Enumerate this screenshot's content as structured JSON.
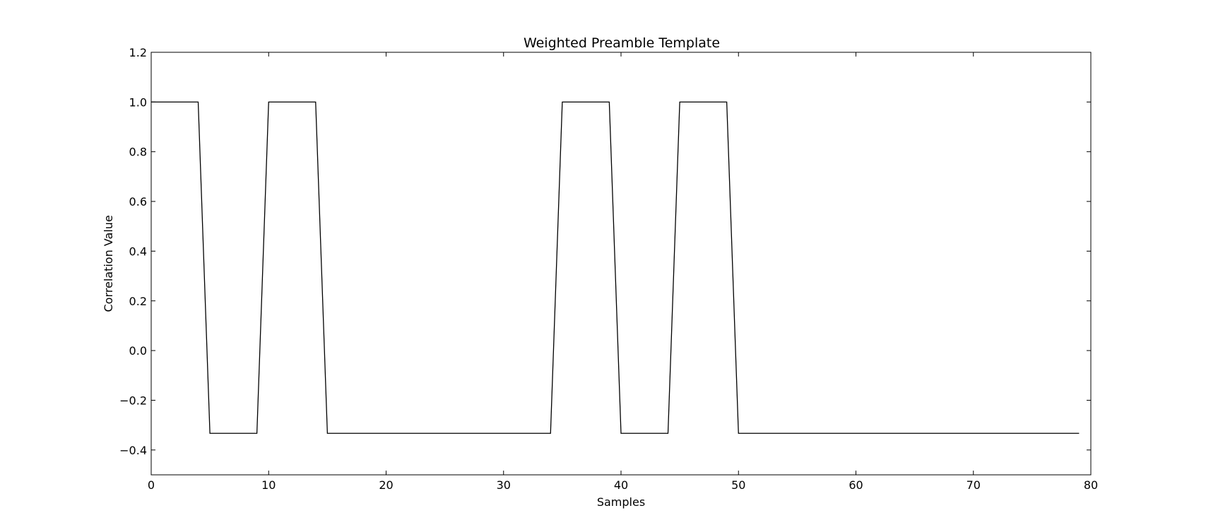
{
  "chart_data": {
    "type": "line",
    "title": "Weighted Preamble Template",
    "xlabel": "Samples",
    "ylabel": "Correlation Value",
    "xlim": [
      0,
      80
    ],
    "ylim": [
      -0.5,
      1.2
    ],
    "xticks": [
      0,
      10,
      20,
      30,
      40,
      50,
      60,
      70,
      80
    ],
    "xtick_labels": [
      "0",
      "10",
      "20",
      "30",
      "40",
      "50",
      "60",
      "70",
      "80"
    ],
    "yticks": [
      -0.4,
      -0.2,
      0.0,
      0.2,
      0.4,
      0.6,
      0.8,
      1.0,
      1.2
    ],
    "ytick_labels": [
      "−0.4",
      "−0.2",
      "0.0",
      "0.2",
      "0.4",
      "0.6",
      "0.8",
      "1.0",
      "1.2"
    ],
    "grid": false,
    "legend": false,
    "series": [
      {
        "color": "#000000",
        "x": [
          0,
          1,
          2,
          3,
          4,
          5,
          6,
          7,
          8,
          9,
          10,
          11,
          12,
          13,
          14,
          15,
          16,
          17,
          18,
          19,
          20,
          21,
          22,
          23,
          24,
          25,
          26,
          27,
          28,
          29,
          30,
          31,
          32,
          33,
          34,
          35,
          36,
          37,
          38,
          39,
          40,
          41,
          42,
          43,
          44,
          45,
          46,
          47,
          48,
          49,
          50,
          51,
          52,
          53,
          54,
          55,
          56,
          57,
          58,
          59,
          60,
          61,
          62,
          63,
          64,
          65,
          66,
          67,
          68,
          69,
          70,
          71,
          72,
          73,
          74,
          75,
          76,
          77,
          78,
          79
        ],
        "y": [
          1,
          1,
          1,
          1,
          1,
          -0.333,
          -0.333,
          -0.333,
          -0.333,
          -0.333,
          1,
          1,
          1,
          1,
          1,
          -0.333,
          -0.333,
          -0.333,
          -0.333,
          -0.333,
          -0.333,
          -0.333,
          -0.333,
          -0.333,
          -0.333,
          -0.333,
          -0.333,
          -0.333,
          -0.333,
          -0.333,
          -0.333,
          -0.333,
          -0.333,
          -0.333,
          -0.333,
          1,
          1,
          1,
          1,
          1,
          -0.333,
          -0.333,
          -0.333,
          -0.333,
          -0.333,
          1,
          1,
          1,
          1,
          1,
          -0.333,
          -0.333,
          -0.333,
          -0.333,
          -0.333,
          -0.333,
          -0.333,
          -0.333,
          -0.333,
          -0.333,
          -0.333,
          -0.333,
          -0.333,
          -0.333,
          -0.333,
          -0.333,
          -0.333,
          -0.333,
          -0.333,
          -0.333,
          -0.333,
          -0.333,
          -0.333,
          -0.333,
          -0.333,
          -0.333,
          -0.333,
          -0.333,
          -0.333,
          -0.333
        ]
      }
    ]
  }
}
